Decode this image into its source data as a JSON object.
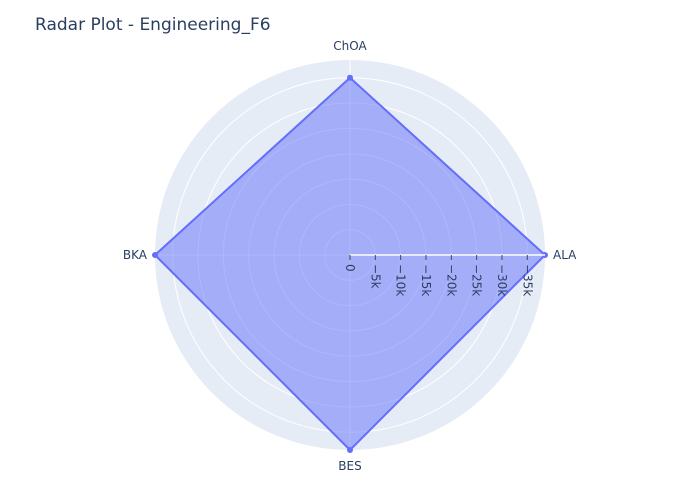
{
  "chart_data": {
    "type": "radar",
    "title": "Radar Plot - Engineering_F6",
    "categories": [
      "ALA",
      "ChOA",
      "BKA",
      "BES"
    ],
    "series": [
      {
        "values": [
          -38500,
          -35000,
          -38500,
          -38500
        ]
      }
    ],
    "radial_range": [
      0,
      -38500
    ],
    "radial_ticks": [
      0,
      -5000,
      -10000,
      -15000,
      -20000,
      -25000,
      -30000,
      -35000
    ],
    "radial_tick_labels": [
      "0",
      "−5k",
      "−10k",
      "−15k",
      "−20k",
      "−25k",
      "−30k",
      "−35k"
    ],
    "grid": true,
    "colors": {
      "background": "#e5ecf6",
      "grid": "#ffffff",
      "line": "#636efa",
      "fill": "#636efa",
      "text": "#2a3f5f"
    }
  }
}
